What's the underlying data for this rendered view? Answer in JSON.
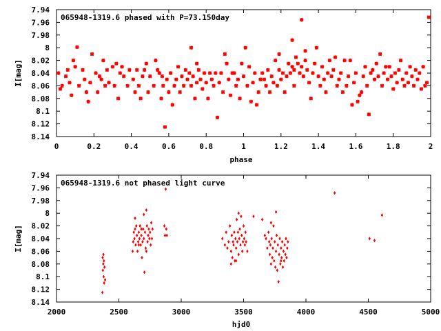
{
  "chart_data": [
    {
      "type": "scatter",
      "title": "065948-1319.6 phased with P=73.150day",
      "xlabel": "phase",
      "ylabel": "I[mag]",
      "xlim": [
        0,
        2
      ],
      "ylim": [
        7.94,
        8.14
      ],
      "y_inverted": true,
      "xticks": [
        "0",
        "0.2",
        "0.4",
        "0.6",
        "0.8",
        "1",
        "1.2",
        "1.4",
        "1.6",
        "1.8",
        "2"
      ],
      "yticks": [
        "7.94",
        "7.96",
        "7.98",
        "8",
        "8.02",
        "8.04",
        "8.06",
        "8.08",
        "8.1",
        "8.12",
        "8.14"
      ],
      "marker": "star",
      "color": "#ff0000",
      "points": [
        [
          0.01,
          8.04
        ],
        [
          0.02,
          8.065
        ],
        [
          0.03,
          8.06
        ],
        [
          0.05,
          8.045
        ],
        [
          0.06,
          8.035
        ],
        [
          0.07,
          8.055
        ],
        [
          0.08,
          8.075
        ],
        [
          0.09,
          8.02
        ],
        [
          0.11,
          7.999
        ],
        [
          0.12,
          8.06
        ],
        [
          0.14,
          8.035
        ],
        [
          0.15,
          8.05
        ],
        [
          0.16,
          8.07
        ],
        [
          0.17,
          8.085
        ],
        [
          0.18,
          8.055
        ],
        [
          0.19,
          8.01
        ],
        [
          0.21,
          8.04
        ],
        [
          0.22,
          8.07
        ],
        [
          0.23,
          8.045
        ],
        [
          0.24,
          8.05
        ],
        [
          0.26,
          8.06
        ],
        [
          0.27,
          8.035
        ],
        [
          0.28,
          8.055
        ],
        [
          0.3,
          8.03
        ],
        [
          0.31,
          8.06
        ],
        [
          0.32,
          8.025
        ],
        [
          0.34,
          8.04
        ],
        [
          0.35,
          8.03
        ],
        [
          0.36,
          8.045
        ],
        [
          0.38,
          8.06
        ],
        [
          0.39,
          8.035
        ],
        [
          0.41,
          8.05
        ],
        [
          0.42,
          8.07
        ],
        [
          0.44,
          8.06
        ],
        [
          0.45,
          8.08
        ],
        [
          0.46,
          8.045
        ],
        [
          0.47,
          8.035
        ],
        [
          0.49,
          8.07
        ],
        [
          0.5,
          8.045
        ],
        [
          0.52,
          8.06
        ],
        [
          0.54,
          8.035
        ],
        [
          0.55,
          8.04
        ],
        [
          0.56,
          8.08
        ],
        [
          0.57,
          8.06
        ],
        [
          0.58,
          8.125
        ],
        [
          0.59,
          8.05
        ],
        [
          0.6,
          8.07
        ],
        [
          0.61,
          8.04
        ],
        [
          0.62,
          8.09
        ],
        [
          0.63,
          8.06
        ],
        [
          0.64,
          8.05
        ],
        [
          0.65,
          8.03
        ],
        [
          0.66,
          8.07
        ],
        [
          0.67,
          8.045
        ],
        [
          0.68,
          8.06
        ],
        [
          0.69,
          8.035
        ],
        [
          0.7,
          8.05
        ],
        [
          0.71,
          8.04
        ],
        [
          0.72,
          8.06
        ],
        [
          0.73,
          8.045
        ],
        [
          0.74,
          8.08
        ],
        [
          0.75,
          8.055
        ],
        [
          0.76,
          8.035
        ],
        [
          0.77,
          8.05
        ],
        [
          0.78,
          8.065
        ],
        [
          0.79,
          8.04
        ],
        [
          0.8,
          8.055
        ],
        [
          0.81,
          8.08
        ],
        [
          0.82,
          8.04
        ],
        [
          0.83,
          8.05
        ],
        [
          0.84,
          8.06
        ],
        [
          0.85,
          8.04
        ],
        [
          0.86,
          8.11
        ],
        [
          0.87,
          8.055
        ],
        [
          0.88,
          8.04
        ],
        [
          0.89,
          8.07
        ],
        [
          0.9,
          8.01
        ],
        [
          0.91,
          8.025
        ],
        [
          0.92,
          8.05
        ],
        [
          0.93,
          8.075
        ],
        [
          0.95,
          8.04
        ],
        [
          0.96,
          8.06
        ],
        [
          0.97,
          8.05
        ],
        [
          0.98,
          8.08
        ],
        [
          0.99,
          8.025
        ],
        [
          1.0,
          8.045
        ],
        [
          1.02,
          8.06
        ],
        [
          1.03,
          8.03
        ],
        [
          1.04,
          8.085
        ],
        [
          1.05,
          8.055
        ],
        [
          1.06,
          8.04
        ],
        [
          1.07,
          8.09
        ],
        [
          1.08,
          8.07
        ],
        [
          1.1,
          8.04
        ],
        [
          1.11,
          8.05
        ],
        [
          1.12,
          8.06
        ],
        [
          1.13,
          8.035
        ],
        [
          1.14,
          8.07
        ],
        [
          1.15,
          8.045
        ],
        [
          1.16,
          8.055
        ],
        [
          1.17,
          8.02
        ],
        [
          1.18,
          8.06
        ],
        [
          1.19,
          8.035
        ],
        [
          1.2,
          8.05
        ],
        [
          1.21,
          8.04
        ],
        [
          1.22,
          8.07
        ],
        [
          1.23,
          8.045
        ],
        [
          1.24,
          8.025
        ],
        [
          1.25,
          8.04
        ],
        [
          1.26,
          8.03
        ],
        [
          1.27,
          8.06
        ],
        [
          1.28,
          8.015
        ],
        [
          1.29,
          8.025
        ],
        [
          1.3,
          8.04
        ],
        [
          1.31,
          8.03
        ],
        [
          1.32,
          8.045
        ],
        [
          1.33,
          8.02
        ],
        [
          1.34,
          8.035
        ],
        [
          1.35,
          8.055
        ],
        [
          1.36,
          8.08
        ],
        [
          1.37,
          8.04
        ],
        [
          1.38,
          8.025
        ],
        [
          1.4,
          8.045
        ],
        [
          1.41,
          8.06
        ],
        [
          1.42,
          8.03
        ],
        [
          1.43,
          8.05
        ],
        [
          1.44,
          8.07
        ],
        [
          1.45,
          8.04
        ],
        [
          1.46,
          8.02
        ],
        [
          1.47,
          8.045
        ],
        [
          1.48,
          8.035
        ],
        [
          1.5,
          8.06
        ],
        [
          1.51,
          8.05
        ],
        [
          1.52,
          8.04
        ],
        [
          1.53,
          8.07
        ],
        [
          1.55,
          8.06
        ],
        [
          1.56,
          8.045
        ],
        [
          1.57,
          8.02
        ],
        [
          1.58,
          8.09
        ],
        [
          1.59,
          8.055
        ],
        [
          1.6,
          8.04
        ],
        [
          1.61,
          8.085
        ],
        [
          1.63,
          8.07
        ],
        [
          1.64,
          8.045
        ],
        [
          1.65,
          8.03
        ],
        [
          1.66,
          8.06
        ],
        [
          1.67,
          8.105
        ],
        [
          1.68,
          8.04
        ],
        [
          1.69,
          8.035
        ],
        [
          1.7,
          8.05
        ],
        [
          1.71,
          8.025
        ],
        [
          1.72,
          8.045
        ],
        [
          1.74,
          8.06
        ],
        [
          1.75,
          8.04
        ],
        [
          1.77,
          8.05
        ],
        [
          1.78,
          8.03
        ],
        [
          1.79,
          8.045
        ],
        [
          1.8,
          8.065
        ],
        [
          1.81,
          8.04
        ],
        [
          1.82,
          8.055
        ],
        [
          1.83,
          8.035
        ],
        [
          1.85,
          8.05
        ],
        [
          1.86,
          8.06
        ],
        [
          1.87,
          8.04
        ],
        [
          1.88,
          8.055
        ],
        [
          1.89,
          8.03
        ],
        [
          1.9,
          8.045
        ],
        [
          1.91,
          8.06
        ],
        [
          1.92,
          8.035
        ],
        [
          1.94,
          8.04
        ],
        [
          1.95,
          8.065
        ],
        [
          1.96,
          8.03
        ],
        [
          1.97,
          8.06
        ],
        [
          1.98,
          8.055
        ],
        [
          1.99,
          7.952
        ],
        [
          0.1,
          8.03
        ],
        [
          0.25,
          8.02
        ],
        [
          0.33,
          8.08
        ],
        [
          0.43,
          8.035
        ],
        [
          0.48,
          8.025
        ],
        [
          0.53,
          8.02
        ],
        [
          0.565,
          8.045
        ],
        [
          0.75,
          8.025
        ],
        [
          0.94,
          8.04
        ],
        [
          1.01,
          8.0
        ],
        [
          1.09,
          8.05
        ],
        [
          1.19,
          8.01
        ],
        [
          1.26,
          7.988
        ],
        [
          1.31,
          7.956
        ],
        [
          1.33,
          8.005
        ],
        [
          1.39,
          8.0
        ],
        [
          1.49,
          8.015
        ],
        [
          1.54,
          8.02
        ],
        [
          1.62,
          8.075
        ],
        [
          1.73,
          8.01
        ],
        [
          1.76,
          8.03
        ],
        [
          1.84,
          8.02
        ],
        [
          1.93,
          8.05
        ],
        [
          1.27,
          8.035
        ],
        [
          0.72,
          8.0
        ]
      ]
    },
    {
      "type": "scatter",
      "title": "065948-1319.6 not phased light curve",
      "xlabel": "hjd0",
      "ylabel": "I[mag]",
      "xlim": [
        2000,
        5000
      ],
      "ylim": [
        7.94,
        8.14
      ],
      "y_inverted": true,
      "xticks": [
        "2000",
        "2500",
        "3000",
        "3500",
        "4000",
        "4500",
        "5000"
      ],
      "yticks": [
        "7.94",
        "7.96",
        "7.98",
        "8",
        "8.02",
        "8.04",
        "8.06",
        "8.08",
        "8.1",
        "8.12",
        "8.14"
      ],
      "marker": "diamond",
      "color": "#ff0000",
      "points": [
        [
          2370,
          8.07
        ],
        [
          2375,
          8.08
        ],
        [
          2380,
          8.075
        ],
        [
          2372,
          8.09
        ],
        [
          2385,
          8.085
        ],
        [
          2378,
          8.1
        ],
        [
          2382,
          8.11
        ],
        [
          2368,
          8.125
        ],
        [
          2390,
          8.105
        ],
        [
          2376,
          8.065
        ],
        [
          2610,
          8.06
        ],
        [
          2615,
          8.045
        ],
        [
          2620,
          8.03
        ],
        [
          2625,
          8.04
        ],
        [
          2630,
          8.025
        ],
        [
          2635,
          8.05
        ],
        [
          2640,
          8.02
        ],
        [
          2645,
          8.035
        ],
        [
          2650,
          8.06
        ],
        [
          2655,
          8.045
        ],
        [
          2660,
          8.03
        ],
        [
          2665,
          8.04
        ],
        [
          2670,
          8.02
        ],
        [
          2675,
          8.05
        ],
        [
          2680,
          8.035
        ],
        [
          2685,
          8.07
        ],
        [
          2690,
          8.045
        ],
        [
          2695,
          8.025
        ],
        [
          2700,
          8.04
        ],
        [
          2705,
          8.093
        ],
        [
          2710,
          8.03
        ],
        [
          2715,
          8.055
        ],
        [
          2720,
          7.995
        ],
        [
          2725,
          8.02
        ],
        [
          2730,
          8.045
        ],
        [
          2735,
          8.035
        ],
        [
          2740,
          8.025
        ],
        [
          2745,
          8.04
        ],
        [
          2750,
          8.03
        ],
        [
          2755,
          8.05
        ],
        [
          2760,
          8.015
        ],
        [
          2765,
          8.04
        ],
        [
          2770,
          8.025
        ],
        [
          2630,
          8.008
        ],
        [
          2700,
          8.002
        ],
        [
          2660,
          8.05
        ],
        [
          2720,
          8.06
        ],
        [
          2680,
          8.025
        ],
        [
          2865,
          8.02
        ],
        [
          2870,
          8.035
        ],
        [
          2875,
          7.962
        ],
        [
          2880,
          8.025
        ],
        [
          2885,
          8.035
        ],
        [
          3330,
          8.04
        ],
        [
          3350,
          8.05
        ],
        [
          3360,
          8.03
        ],
        [
          3370,
          8.055
        ],
        [
          3380,
          8.045
        ],
        [
          3390,
          8.02
        ],
        [
          3400,
          8.06
        ],
        [
          3405,
          8.035
        ],
        [
          3410,
          8.07
        ],
        [
          3415,
          8.045
        ],
        [
          3420,
          8.05
        ],
        [
          3425,
          8.03
        ],
        [
          3430,
          8.075
        ],
        [
          3435,
          8.04
        ],
        [
          3440,
          8.055
        ],
        [
          3445,
          8.01
        ],
        [
          3450,
          8.045
        ],
        [
          3455,
          8.03
        ],
        [
          3460,
          8.065
        ],
        [
          3465,
          8.04
        ],
        [
          3470,
          8.025
        ],
        [
          3475,
          8.05
        ],
        [
          3480,
          8.005
        ],
        [
          3485,
          8.035
        ],
        [
          3490,
          8.06
        ],
        [
          3495,
          8.045
        ],
        [
          3500,
          8.02
        ],
        [
          3505,
          8.04
        ],
        [
          3510,
          8.05
        ],
        [
          3515,
          8.03
        ],
        [
          3520,
          8.045
        ],
        [
          3530,
          8.06
        ],
        [
          3400,
          8.08
        ],
        [
          3440,
          8.075
        ],
        [
          3460,
          8.0
        ],
        [
          3580,
          8.005
        ],
        [
          3650,
          8.01
        ],
        [
          3670,
          8.035
        ],
        [
          3680,
          8.04
        ],
        [
          3690,
          8.055
        ],
        [
          3700,
          8.03
        ],
        [
          3705,
          8.045
        ],
        [
          3710,
          8.065
        ],
        [
          3715,
          8.05
        ],
        [
          3720,
          8.08
        ],
        [
          3725,
          8.04
        ],
        [
          3730,
          8.07
        ],
        [
          3735,
          8.055
        ],
        [
          3740,
          8.02
        ],
        [
          3745,
          8.075
        ],
        [
          3750,
          8.045
        ],
        [
          3755,
          8.085
        ],
        [
          3760,
          8.06
        ],
        [
          3765,
          8.035
        ],
        [
          3770,
          8.09
        ],
        [
          3775,
          8.05
        ],
        [
          3780,
          8.108
        ],
        [
          3785,
          8.065
        ],
        [
          3790,
          8.04
        ],
        [
          3795,
          8.08
        ],
        [
          3800,
          8.055
        ],
        [
          3805,
          8.07
        ],
        [
          3810,
          8.045
        ],
        [
          3815,
          8.085
        ],
        [
          3820,
          8.06
        ],
        [
          3825,
          8.075
        ],
        [
          3830,
          8.05
        ],
        [
          3835,
          8.065
        ],
        [
          3840,
          8.04
        ],
        [
          3845,
          8.07
        ],
        [
          3850,
          8.055
        ],
        [
          3855,
          8.045
        ],
        [
          3760,
          7.998
        ],
        [
          3720,
          8.015
        ],
        [
          3800,
          8.075
        ],
        [
          4230,
          7.968
        ],
        [
          4510,
          8.04
        ],
        [
          4550,
          8.043
        ],
        [
          4610,
          8.003
        ]
      ]
    }
  ]
}
